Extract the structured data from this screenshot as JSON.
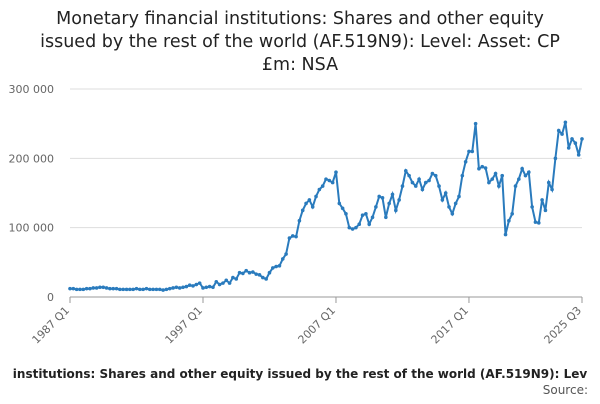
{
  "chart_data": {
    "type": "line",
    "title": [
      "Monetary financial institutions: Shares and other equity",
      "issued by the rest of the world (AF.519N9): Level: Asset: CP",
      "£m: NSA"
    ],
    "footer": "institutions: Shares and other equity issued by the rest of the world (AF.519N9): Lev",
    "source": "Source:",
    "color": "#2a7bbd",
    "grid": true,
    "ylim": [
      0,
      300000
    ],
    "yticks": [
      0,
      {
        "value": 100000,
        "label": "100 000"
      },
      {
        "value": 200000,
        "label": "200 000"
      },
      {
        "value": 300000,
        "label": "300 000"
      }
    ],
    "categories": [
      "1987 Q1",
      null,
      null,
      null,
      null,
      null,
      null,
      null,
      null,
      null,
      null,
      null,
      null,
      null,
      null,
      null,
      null,
      null,
      null,
      null,
      null,
      null,
      null,
      null,
      null,
      null,
      null,
      null,
      null,
      null,
      null,
      null,
      null,
      null,
      null,
      null,
      null,
      null,
      null,
      null,
      "1997 Q1",
      null,
      null,
      null,
      null,
      null,
      null,
      null,
      null,
      null,
      null,
      null,
      null,
      null,
      null,
      null,
      null,
      null,
      null,
      null,
      null,
      null,
      null,
      null,
      null,
      null,
      null,
      null,
      null,
      null,
      null,
      null,
      null,
      null,
      null,
      null,
      null,
      null,
      null,
      null,
      "2007 Q1",
      null,
      null,
      null,
      null,
      null,
      null,
      null,
      null,
      null,
      null,
      null,
      null,
      null,
      null,
      null,
      null,
      null,
      null,
      null,
      null,
      null,
      null,
      null,
      null,
      null,
      null,
      null,
      null,
      null,
      null,
      null,
      null,
      null,
      null,
      null,
      null,
      null,
      null,
      null,
      "2017 Q1",
      null,
      null,
      null,
      null,
      null,
      null,
      null,
      null,
      null,
      null,
      null,
      null,
      null,
      null,
      null,
      null,
      null,
      null,
      null,
      null,
      null,
      null,
      null,
      null,
      null,
      null,
      null,
      null,
      null,
      null,
      null,
      null,
      null,
      "2025 Q3"
    ],
    "values": [
      12000,
      12000,
      11000,
      11000,
      11000,
      12000,
      12000,
      13000,
      13000,
      14000,
      14000,
      13000,
      12000,
      12000,
      12000,
      11000,
      11000,
      11000,
      11000,
      11000,
      12000,
      11000,
      11000,
      12000,
      11000,
      11000,
      11000,
      11000,
      10000,
      11000,
      12000,
      13000,
      14000,
      13000,
      14000,
      15000,
      17000,
      16000,
      18000,
      20000,
      13000,
      14000,
      15000,
      14000,
      22000,
      18000,
      20000,
      24000,
      20000,
      28000,
      26000,
      35000,
      34000,
      38000,
      35000,
      36000,
      33000,
      32000,
      28000,
      26000,
      35000,
      42000,
      44000,
      45000,
      55000,
      62000,
      85000,
      88000,
      87000,
      110000,
      125000,
      135000,
      140000,
      130000,
      145000,
      155000,
      160000,
      170000,
      168000,
      165000,
      180000,
      135000,
      128000,
      120000,
      100000,
      98000,
      100000,
      105000,
      118000,
      120000,
      105000,
      115000,
      130000,
      145000,
      143000,
      115000,
      135000,
      148000,
      125000,
      140000,
      160000,
      182000,
      175000,
      165000,
      160000,
      170000,
      155000,
      165000,
      168000,
      178000,
      175000,
      160000,
      140000,
      150000,
      130000,
      120000,
      135000,
      145000,
      175000,
      195000,
      210000,
      210000,
      250000,
      185000,
      188000,
      186000,
      165000,
      170000,
      178000,
      160000,
      175000,
      90000,
      110000,
      120000,
      160000,
      170000,
      185000,
      175000,
      180000,
      130000,
      108000,
      107000,
      140000,
      125000,
      165000,
      155000,
      200000,
      240000,
      235000,
      252000,
      215000,
      228000,
      222000,
      205000,
      228000
    ]
  }
}
